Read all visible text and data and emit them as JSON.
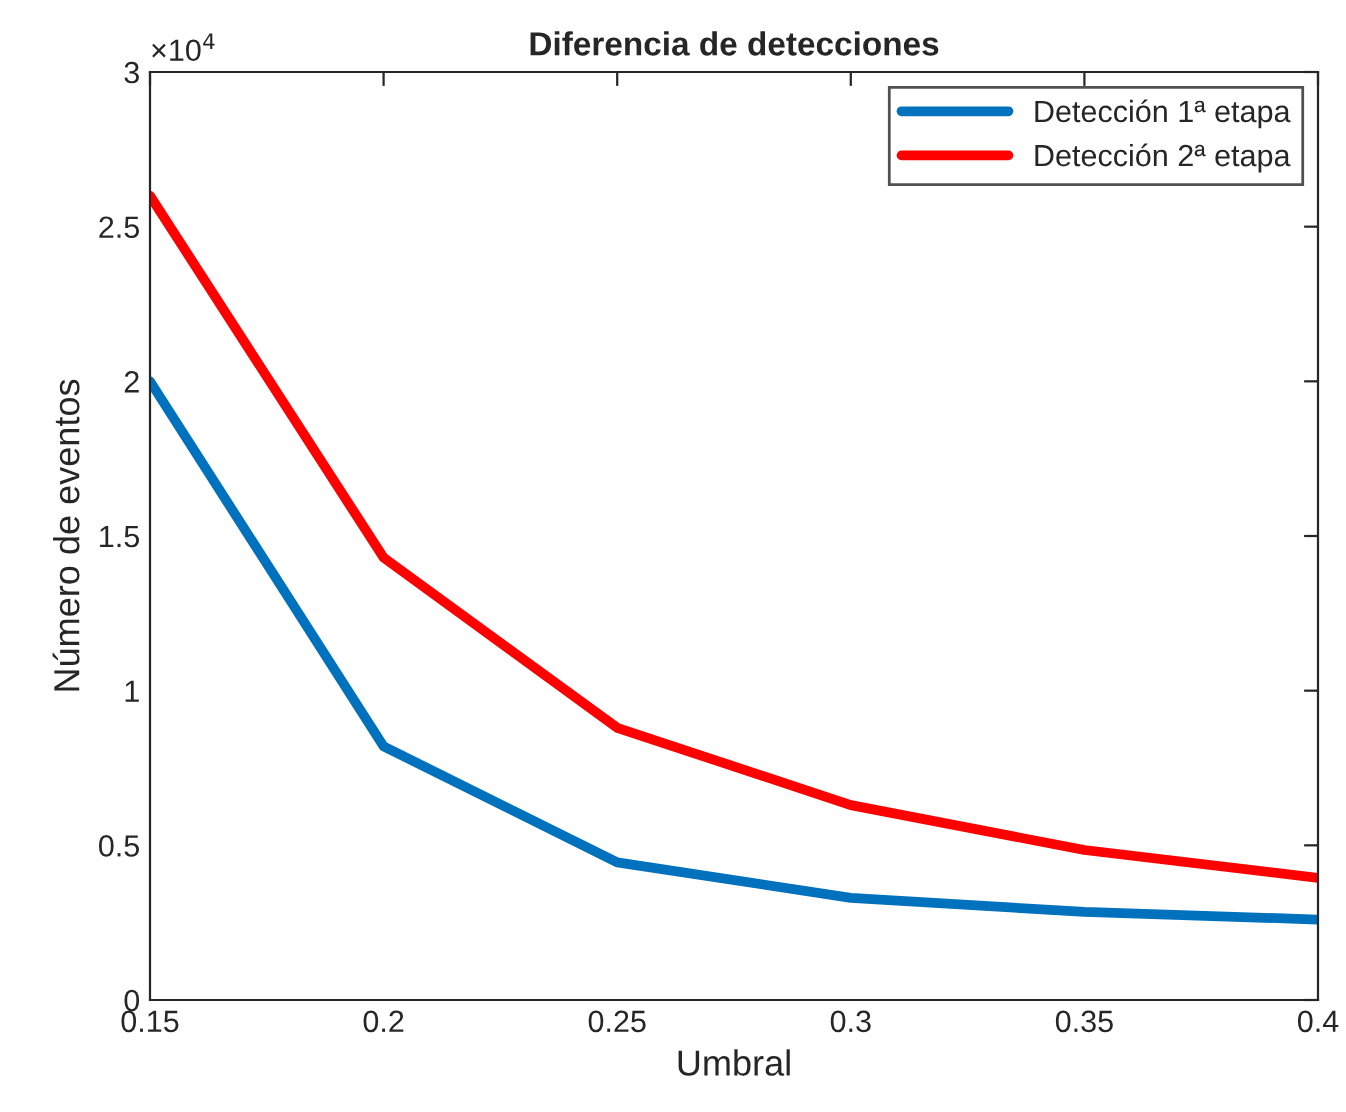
{
  "chart_data": {
    "type": "line",
    "title": "Diferencia de detecciones",
    "xlabel": "Umbral",
    "ylabel": "Número de eventos",
    "x": [
      0.15,
      0.2,
      0.25,
      0.3,
      0.35,
      0.4
    ],
    "series": [
      {
        "name": "Detección 1ª etapa",
        "color": "#0072bd",
        "values": [
          2.0,
          0.82,
          0.445,
          0.33,
          0.285,
          0.26
        ]
      },
      {
        "name": "Detección 2ª etapa",
        "color": "#ff0000",
        "values": [
          2.6,
          1.43,
          0.88,
          0.63,
          0.485,
          0.395
        ]
      }
    ],
    "xlim": [
      0.15,
      0.4
    ],
    "xticks": [
      0.15,
      0.2,
      0.25,
      0.3,
      0.35,
      0.4
    ],
    "ylim": [
      0,
      3
    ],
    "yticks": [
      0,
      0.5,
      1,
      1.5,
      2,
      2.5,
      3
    ],
    "annotations": [
      "×10$^{4}$"
    ],
    "legend": "top right",
    "grid": false,
    "marker": "none",
    "line_style": "solid"
  }
}
